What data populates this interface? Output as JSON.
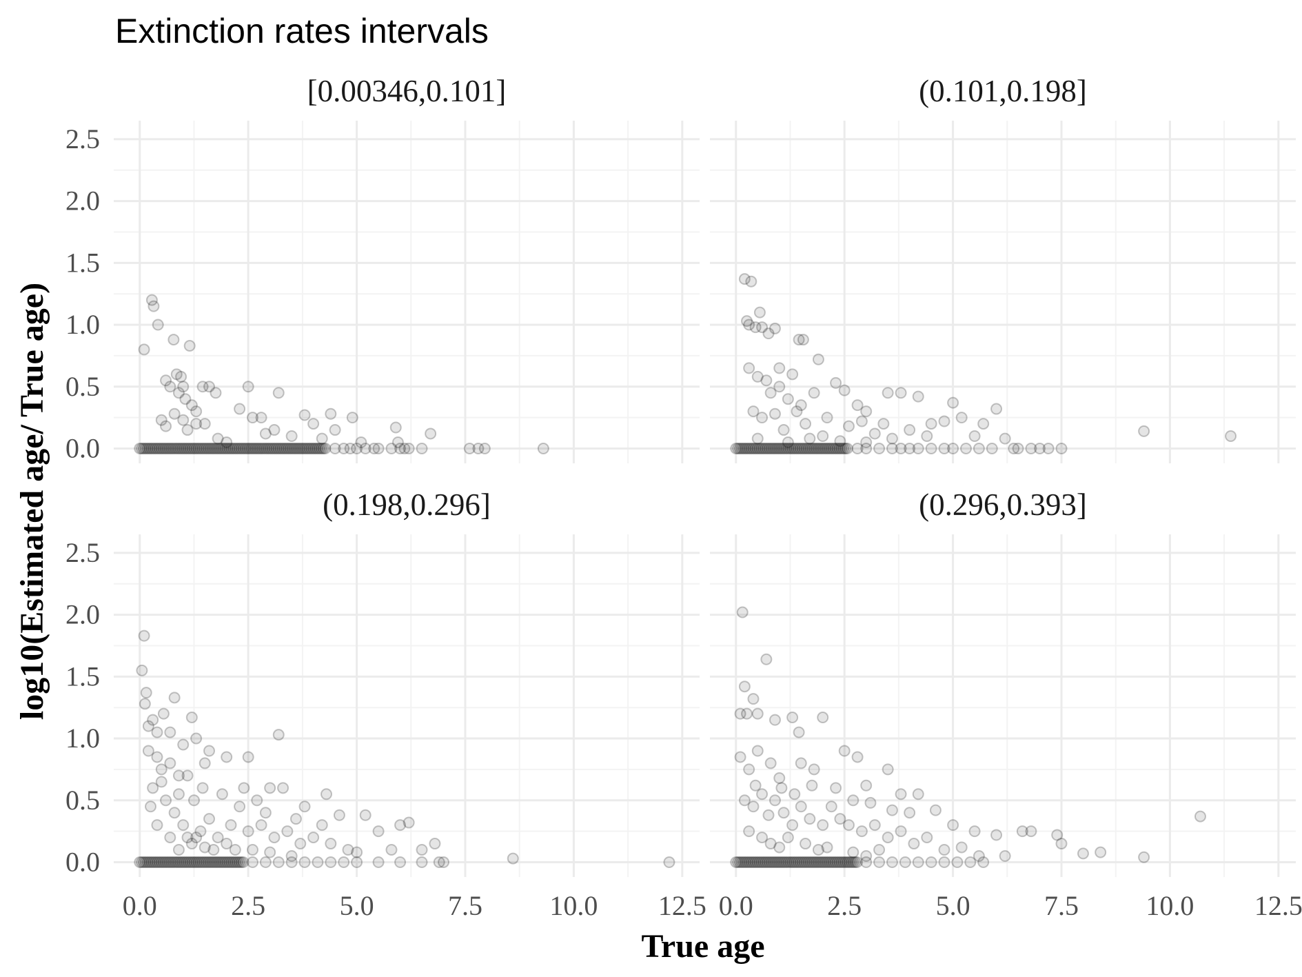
{
  "chart_data": {
    "type": "scatter",
    "title": "Extinction rates intervals",
    "xlabel": "True age",
    "ylabel": "log10(Estimated age/ True age)",
    "xlim": [
      -0.6,
      12.9
    ],
    "ylim": [
      -0.12,
      2.65
    ],
    "x_ticks": [
      "0.0",
      "2.5",
      "5.0",
      "7.5",
      "10.0",
      "12.5"
    ],
    "y_ticks": [
      "0.0",
      "0.5",
      "1.0",
      "1.5",
      "2.0",
      "2.5"
    ],
    "grid": true,
    "facets": [
      {
        "label": "[0.00346,0.101]",
        "points": [
          [
            0.1,
            0.8
          ],
          [
            0.28,
            1.2
          ],
          [
            0.32,
            1.15
          ],
          [
            0.42,
            1.0
          ],
          [
            0.6,
            0.55
          ],
          [
            0.7,
            0.5
          ],
          [
            0.78,
            0.88
          ],
          [
            0.85,
            0.6
          ],
          [
            0.9,
            0.45
          ],
          [
            0.95,
            0.58
          ],
          [
            1.0,
            0.5
          ],
          [
            1.05,
            0.4
          ],
          [
            1.15,
            0.83
          ],
          [
            1.2,
            0.35
          ],
          [
            1.3,
            0.3
          ],
          [
            1.45,
            0.5
          ],
          [
            1.6,
            0.5
          ],
          [
            1.75,
            0.45
          ],
          [
            0.5,
            0.23
          ],
          [
            0.6,
            0.18
          ],
          [
            0.8,
            0.28
          ],
          [
            1.0,
            0.23
          ],
          [
            1.1,
            0.15
          ],
          [
            1.3,
            0.2
          ],
          [
            1.5,
            0.2
          ],
          [
            1.8,
            0.08
          ],
          [
            2.0,
            0.05
          ],
          [
            2.3,
            0.32
          ],
          [
            2.5,
            0.5
          ],
          [
            2.6,
            0.25
          ],
          [
            2.8,
            0.25
          ],
          [
            2.9,
            0.12
          ],
          [
            3.1,
            0.15
          ],
          [
            3.2,
            0.45
          ],
          [
            3.5,
            0.1
          ],
          [
            3.8,
            0.27
          ],
          [
            4.0,
            0.2
          ],
          [
            4.2,
            0.08
          ],
          [
            4.4,
            0.28
          ],
          [
            4.5,
            0.15
          ],
          [
            4.9,
            0.25
          ],
          [
            5.1,
            0.05
          ],
          [
            5.4,
            0.0
          ],
          [
            5.9,
            0.17
          ],
          [
            5.95,
            0.05
          ],
          [
            6.1,
            0.0
          ],
          [
            6.5,
            0.0
          ],
          [
            6.7,
            0.12
          ],
          [
            7.6,
            0.0
          ],
          [
            7.8,
            0.0
          ],
          [
            7.95,
            0.0
          ],
          [
            9.3,
            0.0
          ]
        ],
        "zero_band": [
          0.0,
          4.3
        ],
        "zero_scattered": [
          4.5,
          4.7,
          4.85,
          5.0,
          5.2,
          5.5,
          5.8,
          6.0,
          6.2
        ]
      },
      {
        "label": "(0.101,0.198]",
        "points": [
          [
            0.2,
            1.37
          ],
          [
            0.35,
            1.35
          ],
          [
            0.25,
            1.03
          ],
          [
            0.3,
            1.0
          ],
          [
            0.45,
            0.98
          ],
          [
            0.55,
            1.1
          ],
          [
            0.6,
            0.98
          ],
          [
            0.75,
            0.93
          ],
          [
            0.9,
            0.97
          ],
          [
            1.0,
            0.65
          ],
          [
            1.3,
            0.6
          ],
          [
            1.45,
            0.88
          ],
          [
            1.55,
            0.88
          ],
          [
            1.9,
            0.72
          ],
          [
            0.3,
            0.65
          ],
          [
            0.5,
            0.58
          ],
          [
            0.7,
            0.55
          ],
          [
            0.8,
            0.45
          ],
          [
            1.0,
            0.5
          ],
          [
            1.2,
            0.4
          ],
          [
            1.5,
            0.35
          ],
          [
            1.8,
            0.45
          ],
          [
            2.3,
            0.53
          ],
          [
            2.5,
            0.47
          ],
          [
            2.8,
            0.35
          ],
          [
            3.0,
            0.3
          ],
          [
            3.5,
            0.45
          ],
          [
            3.8,
            0.45
          ],
          [
            4.2,
            0.42
          ],
          [
            4.5,
            0.2
          ],
          [
            4.8,
            0.22
          ],
          [
            5.0,
            0.37
          ],
          [
            5.2,
            0.25
          ],
          [
            5.5,
            0.1
          ],
          [
            5.7,
            0.2
          ],
          [
            6.0,
            0.32
          ],
          [
            6.2,
            0.08
          ],
          [
            6.5,
            0.0
          ],
          [
            7.0,
            0.0
          ],
          [
            7.2,
            0.0
          ],
          [
            7.5,
            0.0
          ],
          [
            9.4,
            0.14
          ],
          [
            11.4,
            0.1
          ],
          [
            0.6,
            0.25
          ],
          [
            1.1,
            0.15
          ],
          [
            1.6,
            0.2
          ],
          [
            2.0,
            0.1
          ],
          [
            2.6,
            0.18
          ],
          [
            3.2,
            0.12
          ],
          [
            3.6,
            0.08
          ],
          [
            4.0,
            0.15
          ],
          [
            4.4,
            0.1
          ],
          [
            0.4,
            0.3
          ],
          [
            0.9,
            0.28
          ],
          [
            1.4,
            0.3
          ],
          [
            2.1,
            0.25
          ],
          [
            2.9,
            0.22
          ],
          [
            3.4,
            0.2
          ],
          [
            0.5,
            0.08
          ],
          [
            1.2,
            0.05
          ],
          [
            1.7,
            0.08
          ],
          [
            2.4,
            0.06
          ],
          [
            3.0,
            0.05
          ]
        ],
        "zero_band": [
          0.0,
          2.6
        ],
        "zero_scattered": [
          2.8,
          3.0,
          3.3,
          3.6,
          3.8,
          4.0,
          4.2,
          4.5,
          4.8,
          5.0,
          5.3,
          5.6,
          5.9,
          6.4,
          6.8
        ]
      },
      {
        "label": "(0.198,0.296]",
        "points": [
          [
            0.05,
            1.55
          ],
          [
            0.1,
            1.83
          ],
          [
            0.15,
            1.37
          ],
          [
            0.12,
            1.28
          ],
          [
            0.2,
            1.1
          ],
          [
            0.3,
            1.15
          ],
          [
            0.4,
            1.05
          ],
          [
            0.55,
            1.2
          ],
          [
            0.7,
            1.05
          ],
          [
            0.8,
            1.33
          ],
          [
            1.2,
            1.17
          ],
          [
            1.3,
            1.0
          ],
          [
            3.2,
            1.03
          ],
          [
            0.2,
            0.9
          ],
          [
            0.4,
            0.85
          ],
          [
            0.5,
            0.75
          ],
          [
            0.7,
            0.8
          ],
          [
            0.9,
            0.7
          ],
          [
            1.0,
            0.95
          ],
          [
            1.1,
            0.7
          ],
          [
            1.5,
            0.8
          ],
          [
            1.6,
            0.9
          ],
          [
            2.0,
            0.85
          ],
          [
            2.5,
            0.85
          ],
          [
            2.7,
            0.5
          ],
          [
            3.0,
            0.6
          ],
          [
            3.3,
            0.6
          ],
          [
            3.8,
            0.45
          ],
          [
            4.3,
            0.55
          ],
          [
            4.6,
            0.38
          ],
          [
            5.2,
            0.38
          ],
          [
            5.5,
            0.25
          ],
          [
            6.0,
            0.3
          ],
          [
            6.2,
            0.32
          ],
          [
            6.8,
            0.15
          ],
          [
            7.0,
            0.0
          ],
          [
            8.6,
            0.03
          ],
          [
            12.2,
            0.0
          ],
          [
            0.3,
            0.6
          ],
          [
            0.6,
            0.5
          ],
          [
            0.8,
            0.4
          ],
          [
            1.0,
            0.3
          ],
          [
            1.1,
            0.2
          ],
          [
            1.2,
            0.15
          ],
          [
            1.4,
            0.25
          ],
          [
            1.6,
            0.35
          ],
          [
            1.8,
            0.2
          ],
          [
            2.1,
            0.3
          ],
          [
            2.3,
            0.45
          ],
          [
            2.5,
            0.25
          ],
          [
            2.8,
            0.3
          ],
          [
            3.1,
            0.2
          ],
          [
            3.4,
            0.25
          ],
          [
            3.7,
            0.15
          ],
          [
            4.0,
            0.2
          ],
          [
            4.4,
            0.15
          ],
          [
            4.8,
            0.1
          ],
          [
            5.0,
            0.08
          ],
          [
            5.8,
            0.1
          ],
          [
            6.5,
            0.1
          ],
          [
            0.4,
            0.3
          ],
          [
            0.7,
            0.2
          ],
          [
            0.9,
            0.1
          ],
          [
            1.3,
            0.2
          ],
          [
            1.5,
            0.12
          ],
          [
            1.7,
            0.1
          ],
          [
            2.0,
            0.15
          ],
          [
            2.2,
            0.1
          ],
          [
            2.6,
            0.1
          ],
          [
            3.0,
            0.08
          ],
          [
            3.5,
            0.05
          ],
          [
            0.25,
            0.45
          ],
          [
            0.5,
            0.65
          ],
          [
            0.9,
            0.55
          ],
          [
            1.25,
            0.5
          ],
          [
            1.45,
            0.6
          ],
          [
            1.9,
            0.55
          ],
          [
            2.4,
            0.6
          ],
          [
            2.9,
            0.4
          ],
          [
            3.6,
            0.35
          ],
          [
            4.2,
            0.3
          ]
        ],
        "zero_band": [
          0.0,
          2.4
        ],
        "zero_scattered": [
          2.6,
          2.9,
          3.2,
          3.5,
          3.8,
          4.1,
          4.4,
          4.7,
          5.0,
          5.5,
          6.0,
          6.5,
          6.9
        ]
      },
      {
        "label": "(0.296,0.393]",
        "points": [
          [
            0.15,
            2.02
          ],
          [
            0.7,
            1.64
          ],
          [
            0.2,
            1.42
          ],
          [
            0.4,
            1.32
          ],
          [
            0.5,
            1.2
          ],
          [
            0.1,
            1.2
          ],
          [
            0.25,
            1.2
          ],
          [
            0.9,
            1.15
          ],
          [
            1.3,
            1.17
          ],
          [
            1.45,
            1.05
          ],
          [
            2.0,
            1.17
          ],
          [
            0.1,
            0.85
          ],
          [
            0.3,
            0.75
          ],
          [
            0.5,
            0.9
          ],
          [
            0.8,
            0.8
          ],
          [
            1.0,
            0.68
          ],
          [
            1.5,
            0.8
          ],
          [
            1.8,
            0.75
          ],
          [
            2.5,
            0.9
          ],
          [
            2.8,
            0.85
          ],
          [
            3.0,
            0.62
          ],
          [
            3.5,
            0.75
          ],
          [
            3.8,
            0.55
          ],
          [
            4.2,
            0.55
          ],
          [
            4.6,
            0.42
          ],
          [
            5.0,
            0.3
          ],
          [
            5.5,
            0.25
          ],
          [
            6.0,
            0.22
          ],
          [
            6.6,
            0.25
          ],
          [
            6.8,
            0.25
          ],
          [
            7.4,
            0.22
          ],
          [
            7.5,
            0.15
          ],
          [
            8.0,
            0.07
          ],
          [
            8.4,
            0.08
          ],
          [
            9.4,
            0.04
          ],
          [
            10.7,
            0.37
          ],
          [
            0.2,
            0.5
          ],
          [
            0.4,
            0.45
          ],
          [
            0.6,
            0.55
          ],
          [
            0.9,
            0.5
          ],
          [
            1.1,
            0.4
          ],
          [
            1.3,
            0.3
          ],
          [
            1.5,
            0.45
          ],
          [
            1.7,
            0.35
          ],
          [
            2.0,
            0.3
          ],
          [
            2.2,
            0.45
          ],
          [
            2.4,
            0.35
          ],
          [
            2.6,
            0.3
          ],
          [
            2.9,
            0.25
          ],
          [
            3.2,
            0.3
          ],
          [
            3.5,
            0.2
          ],
          [
            3.8,
            0.25
          ],
          [
            4.1,
            0.15
          ],
          [
            4.4,
            0.2
          ],
          [
            4.8,
            0.1
          ],
          [
            5.2,
            0.12
          ],
          [
            5.6,
            0.05
          ],
          [
            6.2,
            0.05
          ],
          [
            0.3,
            0.25
          ],
          [
            0.6,
            0.2
          ],
          [
            0.8,
            0.15
          ],
          [
            1.0,
            0.12
          ],
          [
            1.2,
            0.2
          ],
          [
            1.6,
            0.15
          ],
          [
            1.9,
            0.1
          ],
          [
            2.1,
            0.12
          ],
          [
            2.7,
            0.08
          ],
          [
            3.0,
            0.05
          ],
          [
            3.3,
            0.1
          ],
          [
            0.45,
            0.62
          ],
          [
            0.75,
            0.38
          ],
          [
            1.05,
            0.6
          ],
          [
            1.35,
            0.55
          ],
          [
            1.75,
            0.62
          ],
          [
            2.3,
            0.6
          ],
          [
            2.7,
            0.5
          ],
          [
            3.1,
            0.48
          ],
          [
            3.6,
            0.42
          ],
          [
            4.0,
            0.4
          ]
        ],
        "zero_band": [
          0.0,
          2.8
        ],
        "zero_scattered": [
          3.0,
          3.3,
          3.6,
          3.9,
          4.2,
          4.5,
          4.8,
          5.1,
          5.4,
          5.7
        ]
      }
    ]
  }
}
